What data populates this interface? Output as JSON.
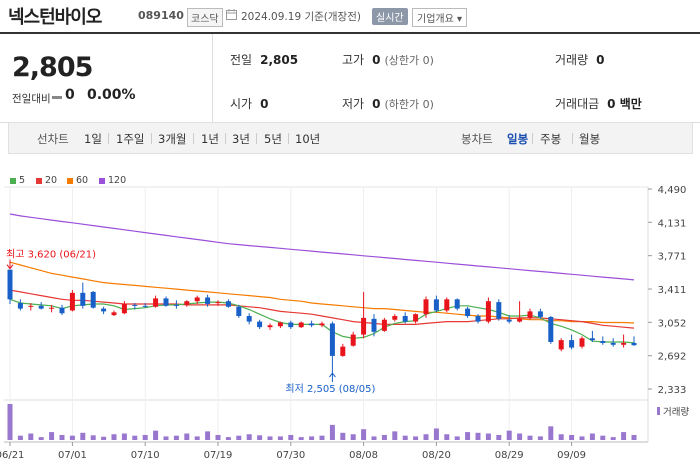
{
  "header": {
    "title": "넥스턴바이오",
    "code": "089140",
    "market": "코스닥",
    "date_text": "2024.09.19  기준(개장전)",
    "realtime_label": "실시간",
    "profile_label": "기업개요 ▾"
  },
  "price": {
    "current": "2,805",
    "change_label": "전일대비",
    "change_value": "0",
    "change_pct": "0.00%"
  },
  "stats": {
    "prev_label": "전일",
    "prev_value": "2,805",
    "high_label": "고가",
    "high_value": "0",
    "high_sub": "(상한가 0)",
    "volume_label": "거래량",
    "volume_value": "0",
    "open_label": "시가",
    "open_value": "0",
    "low_label": "저가",
    "low_value": "0",
    "low_sub": "(하한가 0)",
    "amount_label": "거래대금",
    "amount_value": "0 백만"
  },
  "period_bar": {
    "line_chart_label": "선차트",
    "line_options": [
      "1일",
      "1주일",
      "3개월",
      "1년",
      "3년",
      "5년",
      "10년"
    ],
    "candle_label": "봉차트",
    "candle_options": [
      "일봉",
      "주봉",
      "월봉"
    ],
    "active_candle": "일봉"
  },
  "colors": {
    "up": "#e8141b",
    "down": "#1860c7",
    "ma5": "#4caf50",
    "ma20": "#e53935",
    "ma60": "#f57c00",
    "ma120": "#9c4fd9",
    "volume": "#9a77cf"
  },
  "chart_data": {
    "type": "candlestick",
    "legend": [
      {
        "name": "5",
        "color": "#4caf50"
      },
      {
        "name": "20",
        "color": "#e53935"
      },
      {
        "name": "60",
        "color": "#f57c00"
      },
      {
        "name": "120",
        "color": "#9c4fd9"
      }
    ],
    "y_ticks": [
      "4,490",
      "4,131",
      "3,771",
      "3,411",
      "3,052",
      "2,692",
      "2,333"
    ],
    "y_tick_values": [
      4490,
      4131,
      3771,
      3411,
      3052,
      2692,
      2333
    ],
    "ylim": [
      2333,
      4490
    ],
    "x_ticks": [
      {
        "label": "06/21",
        "index": 0
      },
      {
        "label": "07/01",
        "index": 6
      },
      {
        "label": "07/10",
        "index": 13
      },
      {
        "label": "07/19",
        "index": 20
      },
      {
        "label": "07/30",
        "index": 27
      },
      {
        "label": "08/08",
        "index": 34
      },
      {
        "label": "08/20",
        "index": 41
      },
      {
        "label": "08/29",
        "index": 48
      },
      {
        "label": "09/09",
        "index": 54
      }
    ],
    "volume_label": "거래량",
    "max_annotation": {
      "text": "최고  3,620 (06/21)",
      "value": 3620,
      "index": 0
    },
    "min_annotation": {
      "text": "최저  2,505 (08/05)",
      "value": 2505,
      "index": 31
    },
    "candles": [
      {
        "o": 3620,
        "h": 3620,
        "l": 3250,
        "c": 3300
      },
      {
        "o": 3260,
        "h": 3300,
        "l": 3180,
        "c": 3200
      },
      {
        "o": 3220,
        "h": 3260,
        "l": 3180,
        "c": 3230
      },
      {
        "o": 3230,
        "h": 3270,
        "l": 3190,
        "c": 3200
      },
      {
        "o": 3200,
        "h": 3240,
        "l": 3160,
        "c": 3210
      },
      {
        "o": 3210,
        "h": 3240,
        "l": 3130,
        "c": 3150
      },
      {
        "o": 3180,
        "h": 3400,
        "l": 3170,
        "c": 3370
      },
      {
        "o": 3370,
        "h": 3480,
        "l": 3200,
        "c": 3230
      },
      {
        "o": 3380,
        "h": 3390,
        "l": 3200,
        "c": 3210
      },
      {
        "o": 3200,
        "h": 3220,
        "l": 3140,
        "c": 3170
      },
      {
        "o": 3130,
        "h": 3180,
        "l": 3120,
        "c": 3160
      },
      {
        "o": 3150,
        "h": 3280,
        "l": 3140,
        "c": 3250
      },
      {
        "o": 3240,
        "h": 3260,
        "l": 3190,
        "c": 3230
      },
      {
        "o": 3230,
        "h": 3260,
        "l": 3210,
        "c": 3220
      },
      {
        "o": 3220,
        "h": 3340,
        "l": 3210,
        "c": 3310
      },
      {
        "o": 3310,
        "h": 3330,
        "l": 3220,
        "c": 3230
      },
      {
        "o": 3240,
        "h": 3290,
        "l": 3200,
        "c": 3230
      },
      {
        "o": 3240,
        "h": 3290,
        "l": 3220,
        "c": 3280
      },
      {
        "o": 3280,
        "h": 3340,
        "l": 3250,
        "c": 3320
      },
      {
        "o": 3320,
        "h": 3350,
        "l": 3220,
        "c": 3250
      },
      {
        "o": 3260,
        "h": 3290,
        "l": 3230,
        "c": 3270
      },
      {
        "o": 3280,
        "h": 3300,
        "l": 3210,
        "c": 3220
      },
      {
        "o": 3220,
        "h": 3240,
        "l": 3100,
        "c": 3120
      },
      {
        "o": 3120,
        "h": 3150,
        "l": 3030,
        "c": 3060
      },
      {
        "o": 3060,
        "h": 3080,
        "l": 2980,
        "c": 3000
      },
      {
        "o": 3000,
        "h": 3040,
        "l": 2970,
        "c": 3020
      },
      {
        "o": 3010,
        "h": 3060,
        "l": 2990,
        "c": 3050
      },
      {
        "o": 3050,
        "h": 3070,
        "l": 2980,
        "c": 3000
      },
      {
        "o": 3000,
        "h": 3060,
        "l": 2990,
        "c": 3050
      },
      {
        "o": 3040,
        "h": 3070,
        "l": 3000,
        "c": 3020
      },
      {
        "o": 3020,
        "h": 3060,
        "l": 3000,
        "c": 3040
      },
      {
        "o": 3040,
        "h": 3060,
        "l": 2505,
        "c": 2690
      },
      {
        "o": 2690,
        "h": 2820,
        "l": 2680,
        "c": 2790
      },
      {
        "o": 2800,
        "h": 2950,
        "l": 2790,
        "c": 2920
      },
      {
        "o": 2920,
        "h": 3380,
        "l": 2880,
        "c": 3100
      },
      {
        "o": 3090,
        "h": 3140,
        "l": 2900,
        "c": 2950
      },
      {
        "o": 2960,
        "h": 3100,
        "l": 2950,
        "c": 3080
      },
      {
        "o": 3080,
        "h": 3140,
        "l": 3060,
        "c": 3120
      },
      {
        "o": 3120,
        "h": 3160,
        "l": 3040,
        "c": 3060
      },
      {
        "o": 3060,
        "h": 3150,
        "l": 3040,
        "c": 3140
      },
      {
        "o": 3140,
        "h": 3330,
        "l": 3100,
        "c": 3300
      },
      {
        "o": 3300,
        "h": 3340,
        "l": 3160,
        "c": 3180
      },
      {
        "o": 3180,
        "h": 3320,
        "l": 3160,
        "c": 3300
      },
      {
        "o": 3300,
        "h": 3310,
        "l": 3180,
        "c": 3200
      },
      {
        "o": 3200,
        "h": 3220,
        "l": 3100,
        "c": 3120
      },
      {
        "o": 3120,
        "h": 3140,
        "l": 3040,
        "c": 3060
      },
      {
        "o": 3060,
        "h": 3320,
        "l": 3040,
        "c": 3280
      },
      {
        "o": 3270,
        "h": 3300,
        "l": 3070,
        "c": 3090
      },
      {
        "o": 3080,
        "h": 3130,
        "l": 3040,
        "c": 3060
      },
      {
        "o": 3060,
        "h": 3280,
        "l": 3050,
        "c": 3090
      },
      {
        "o": 3100,
        "h": 3200,
        "l": 3080,
        "c": 3170
      },
      {
        "o": 3170,
        "h": 3200,
        "l": 3090,
        "c": 3110
      },
      {
        "o": 3110,
        "h": 3120,
        "l": 2820,
        "c": 2840
      },
      {
        "o": 2760,
        "h": 2880,
        "l": 2740,
        "c": 2860
      },
      {
        "o": 2860,
        "h": 2920,
        "l": 2760,
        "c": 2780
      },
      {
        "o": 2790,
        "h": 2900,
        "l": 2770,
        "c": 2880
      },
      {
        "o": 2880,
        "h": 2960,
        "l": 2840,
        "c": 2860
      },
      {
        "o": 2850,
        "h": 2900,
        "l": 2810,
        "c": 2830
      },
      {
        "o": 2830,
        "h": 2880,
        "l": 2790,
        "c": 2810
      },
      {
        "o": 2810,
        "h": 2920,
        "l": 2780,
        "c": 2830
      },
      {
        "o": 2830,
        "h": 2900,
        "l": 2800,
        "c": 2805
      }
    ],
    "volumes": [
      100,
      12,
      18,
      8,
      22,
      14,
      12,
      20,
      13,
      9,
      16,
      18,
      12,
      14,
      26,
      10,
      12,
      18,
      10,
      24,
      14,
      8,
      12,
      16,
      13,
      10,
      10,
      14,
      8,
      10,
      12,
      42,
      20,
      16,
      30,
      10,
      14,
      24,
      12,
      10,
      16,
      32,
      16,
      10,
      22,
      20,
      18,
      14,
      26,
      18,
      12,
      10,
      38,
      16,
      14,
      10,
      18,
      12,
      8,
      22,
      14
    ],
    "ma5": [
      3300,
      3260,
      3250,
      3240,
      3230,
      3200,
      3230,
      3240,
      3250,
      3250,
      3230,
      3190,
      3200,
      3210,
      3230,
      3240,
      3240,
      3250,
      3260,
      3270,
      3270,
      3260,
      3230,
      3190,
      3140,
      3090,
      3050,
      3030,
      3030,
      3030,
      3030,
      2950,
      2900,
      2880,
      2890,
      2930,
      3000,
      3040,
      3060,
      3070,
      3140,
      3170,
      3200,
      3230,
      3230,
      3210,
      3190,
      3160,
      3120,
      3120,
      3130,
      3100,
      3040,
      3010,
      2970,
      2920,
      2850,
      2840,
      2840,
      2840,
      2830
    ],
    "ma20": [
      3400,
      3380,
      3360,
      3340,
      3320,
      3300,
      3290,
      3290,
      3280,
      3270,
      3260,
      3250,
      3250,
      3250,
      3250,
      3250,
      3250,
      3240,
      3240,
      3240,
      3240,
      3240,
      3230,
      3220,
      3210,
      3190,
      3170,
      3160,
      3150,
      3140,
      3120,
      3100,
      3080,
      3060,
      3050,
      3040,
      3030,
      3030,
      3030,
      3030,
      3040,
      3050,
      3060,
      3060,
      3060,
      3070,
      3080,
      3090,
      3090,
      3100,
      3100,
      3100,
      3090,
      3080,
      3070,
      3060,
      3040,
      3020,
      3010,
      3000,
      2990
    ],
    "ma60": [
      3700,
      3670,
      3640,
      3610,
      3580,
      3560,
      3540,
      3520,
      3500,
      3480,
      3470,
      3460,
      3450,
      3440,
      3430,
      3420,
      3410,
      3400,
      3390,
      3380,
      3370,
      3360,
      3350,
      3340,
      3330,
      3320,
      3300,
      3290,
      3280,
      3260,
      3250,
      3240,
      3230,
      3220,
      3210,
      3200,
      3200,
      3190,
      3180,
      3170,
      3160,
      3160,
      3150,
      3140,
      3130,
      3120,
      3120,
      3110,
      3100,
      3090,
      3080,
      3080,
      3070,
      3070,
      3060,
      3060,
      3060,
      3050,
      3050,
      3050,
      3045
    ],
    "ma120": [
      4220,
      4200,
      4185,
      4170,
      4155,
      4140,
      4125,
      4110,
      4095,
      4080,
      4065,
      4050,
      4035,
      4020,
      4005,
      3990,
      3975,
      3960,
      3945,
      3930,
      3915,
      3900,
      3890,
      3880,
      3870,
      3860,
      3850,
      3840,
      3830,
      3820,
      3810,
      3800,
      3790,
      3780,
      3770,
      3760,
      3750,
      3740,
      3730,
      3720,
      3710,
      3700,
      3690,
      3680,
      3670,
      3660,
      3650,
      3640,
      3630,
      3620,
      3610,
      3600,
      3590,
      3580,
      3570,
      3560,
      3550,
      3540,
      3530,
      3520,
      3510
    ]
  }
}
